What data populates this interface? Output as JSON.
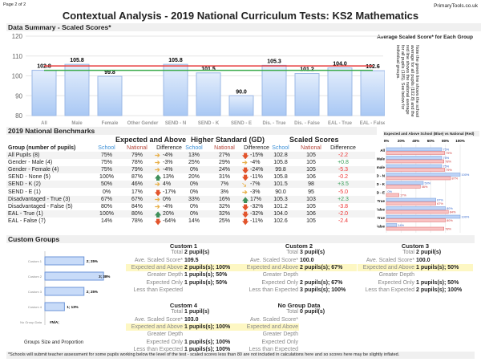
{
  "page_label": "Page 2 of 2",
  "brand": "PrimaryTools.co.uk",
  "title": "Contextual Analysis - 2019 National Curriculum Tests: KS2 Mathematics",
  "summary": {
    "section_title": "Data Summary - Scaled Scores*",
    "note": "Note the green line shows the school average for all pupils (102.8) and the red line shows the national average for all pupils (105). See below for individual groups.",
    "chart_data": {
      "type": "bar",
      "title": "Average Scaled Score* for Each Group",
      "categories": [
        "All",
        "Male",
        "Female",
        "Other Gender",
        "SEND - N",
        "SEND - K",
        "SEND - E",
        "Dis. - True",
        "Dis. - False",
        "EAL - True",
        "EAL - False"
      ],
      "values": [
        102.8,
        105.8,
        99.8,
        null,
        105.8,
        101.5,
        90.0,
        105.3,
        101.2,
        104.0,
        102.6
      ],
      "ylim": [
        80,
        120
      ],
      "yticks": [
        80,
        90,
        100,
        110,
        120
      ],
      "reference_lines": [
        {
          "value": 105,
          "color": "#e83a3a"
        },
        {
          "value": 102.8,
          "color": "#3aaa4a"
        }
      ],
      "grid": true
    }
  },
  "benchmarks": {
    "section_title": "2019 National Benchmarks",
    "groups": {
      "eap": "Expected and Above",
      "gd": "Higher Standard (GD)",
      "ss": "Scaled Scores"
    },
    "headers": {
      "group": "Group (number of pupils)",
      "school": "School",
      "national": "National",
      "difference": "Difference"
    },
    "rows": [
      {
        "group": "All Pupils (8)",
        "eap": [
          "75%",
          "79%",
          "-4%",
          "right"
        ],
        "gd": [
          "13%",
          "27%",
          "-15%",
          "down"
        ],
        "ss": [
          "102.8",
          "105",
          "-2.2"
        ]
      },
      {
        "group": "Gender - Male (4)",
        "eap": [
          "75%",
          "78%",
          "-3%",
          "right"
        ],
        "gd": [
          "25%",
          "29%",
          "-4%",
          "right"
        ],
        "ss": [
          "105.8",
          "105",
          "+0.8"
        ]
      },
      {
        "group": "Gender - Female (4)",
        "eap": [
          "75%",
          "79%",
          "-4%",
          "right"
        ],
        "gd": [
          "0%",
          "24%",
          "-24%",
          "down"
        ],
        "ss": [
          "99.8",
          "105",
          "-5.3"
        ]
      },
      {
        "group": "SEND - None (5)",
        "eap": [
          "100%",
          "87%",
          "13%",
          "up"
        ],
        "gd": [
          "20%",
          "31%",
          "-11%",
          "down"
        ],
        "ss": [
          "105.8",
          "106",
          "-0.2"
        ]
      },
      {
        "group": "SEND - K (2)",
        "eap": [
          "50%",
          "46%",
          "4%",
          "right"
        ],
        "gd": [
          "0%",
          "7%",
          "-7%",
          "downright"
        ],
        "ss": [
          "101.5",
          "98",
          "+3.5"
        ]
      },
      {
        "group": "SEND - E (1)",
        "eap": [
          "0%",
          "17%",
          "-17%",
          "down"
        ],
        "gd": [
          "0%",
          "3%",
          "-3%",
          "right"
        ],
        "ss": [
          "90.0",
          "95",
          "-5.0"
        ]
      },
      {
        "group": "Disadvantaged - True (3)",
        "eap": [
          "67%",
          "67%",
          "0%",
          "right"
        ],
        "gd": [
          "33%",
          "16%",
          "17%",
          "up"
        ],
        "ss": [
          "105.3",
          "103",
          "+2.3"
        ]
      },
      {
        "group": "Disadvantaged - False (5)",
        "eap": [
          "80%",
          "84%",
          "-4%",
          "right"
        ],
        "gd": [
          "0%",
          "32%",
          "-32%",
          "down"
        ],
        "ss": [
          "101.2",
          "105",
          "-3.8"
        ]
      },
      {
        "group": "EAL - True (1)",
        "eap": [
          "100%",
          "80%",
          "20%",
          "up"
        ],
        "gd": [
          "0%",
          "32%",
          "-32%",
          "down"
        ],
        "ss": [
          "104.0",
          "106",
          "-2.0"
        ]
      },
      {
        "group": "EAL - False (7)",
        "eap": [
          "14%",
          "78%",
          "-64%",
          "down"
        ],
        "gd": [
          "14%",
          "25%",
          "-11%",
          "down"
        ],
        "ss": [
          "102.6",
          "105",
          "-2.4"
        ]
      }
    ],
    "arrow_colors": {
      "up": "#3f8f5a",
      "right": "#e8b04a",
      "down": "#e2542c",
      "downright": "#e8b04a"
    }
  },
  "side_chart": {
    "chart_data": {
      "type": "bar",
      "title": "Expected and Above School (Blue) vs National (Red)",
      "categories": [
        "All",
        "Male",
        "Female",
        "SEND - N",
        "SEND - K",
        "SEND - E",
        "Dis. - True",
        "Dis. - False",
        "EAL - True",
        "EAL - False"
      ],
      "xticks": [
        "0%",
        "20%",
        "40%",
        "60%",
        "80%",
        "100%"
      ],
      "xlim": [
        0,
        100
      ],
      "series": [
        {
          "name": "School",
          "color": "#bcd3f7",
          "values": [
            75,
            75,
            75,
            100,
            50,
            0,
            67,
            80,
            100,
            14
          ]
        },
        {
          "name": "National",
          "color": "#f9c3c3",
          "values": [
            79,
            78,
            79,
            87,
            46,
            17,
            67,
            84,
            80,
            78
          ]
        }
      ]
    }
  },
  "custom": {
    "section_title": "Custom Groups",
    "chart_data": {
      "type": "bar",
      "xlabel": "Groups Size and Proportion",
      "categories": [
        "Custom 1",
        "Custom 2",
        "Custom 3",
        "Custom 4",
        "No Group Data"
      ],
      "values": [
        2,
        3,
        2,
        1,
        null
      ],
      "labels": [
        "2; 25%",
        "3; 38%",
        "2; 25%",
        "1; 13%",
        "#N/A;"
      ]
    },
    "row_labels": [
      "Total",
      "Ave. Scaled Score*",
      "Expected and Above",
      "Greater Depth",
      "Expected Only",
      "Less than Expected"
    ],
    "blocks": [
      {
        "name": "Custom 1",
        "values": [
          "2 pupil(s)",
          "109.5",
          "2 pupils(s); 100%",
          "1 pupils(s); 50%",
          "1 pupils(s); 50%",
          ""
        ]
      },
      {
        "name": "Custom 2",
        "values": [
          "3 pupil(s)",
          "100.0",
          "2 pupils(s); 67%",
          "",
          "2 pupils(s); 67%",
          "3 pupils(s); 100%"
        ]
      },
      {
        "name": "Custom 3",
        "values": [
          "2 pupil(s)",
          "100.0",
          "1 pupils(s); 50%",
          "",
          "1 pupils(s); 50%",
          "2 pupils(s); 100%"
        ]
      },
      {
        "name": "Custom 4",
        "values": [
          "1 pupil(s)",
          "103.0",
          "1 pupils(s); 100%",
          "",
          "1 pupils(s); 100%",
          "1 pupils(s); 100%"
        ]
      },
      {
        "name": "No Group Data",
        "values": [
          "0 pupil(s)",
          "",
          "",
          "",
          "",
          ""
        ]
      }
    ],
    "footnote": "*Schools will submit teacher assessment for some pupils working below the level of the test - scaled scores less than 80 are not included in calculations here and so scores here may be slightly inflated."
  }
}
